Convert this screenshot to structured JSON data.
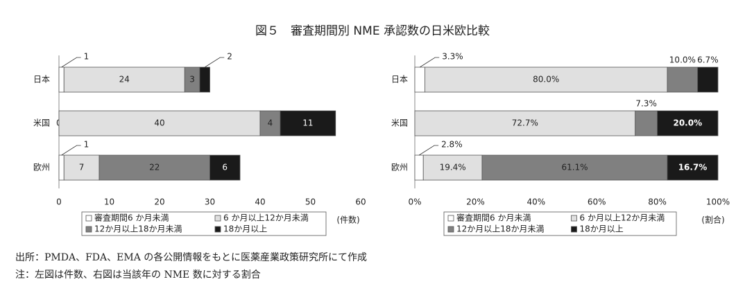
{
  "title": "図５　審査期間別 NME 承認数の日米欧比較",
  "notes": [
    "出所：PMDA、FDA、EMA の各公開情報をもとに医薬産業政策研究所にて作成",
    "注：左図は件数、右図は当該年の NME 数に対する割合"
  ],
  "chart_data": [
    {
      "type": "stacked-barh",
      "categories": [
        "日本",
        "米国",
        "欧州"
      ],
      "series": [
        {
          "name": "審査期間6 か月未満",
          "color": "#ffffff",
          "values": [
            1,
            0,
            1
          ]
        },
        {
          "name": "6 か月以上12か月未満",
          "color": "#e0e0e0",
          "values": [
            24,
            40,
            7
          ]
        },
        {
          "name": "12か月以上18か月未満",
          "color": "#808080",
          "values": [
            3,
            4,
            22
          ]
        },
        {
          "name": "18か月以上",
          "color": "#1a1a1a",
          "values": [
            2,
            11,
            6
          ]
        }
      ],
      "xlim": [
        0,
        60
      ],
      "xticks": [
        0,
        10,
        20,
        30,
        40,
        50,
        60
      ],
      "x_unit_label": "(件数)"
    },
    {
      "type": "stacked-barh",
      "categories": [
        "日本",
        "米国",
        "欧州"
      ],
      "series": [
        {
          "name": "審査期間6 か月未満",
          "color": "#ffffff",
          "values": [
            3.3,
            0,
            2.8
          ],
          "value_labels": [
            "3.3%",
            null,
            "2.8%"
          ]
        },
        {
          "name": "6 か月以上12か月未満",
          "color": "#e0e0e0",
          "values": [
            80.0,
            72.7,
            19.4
          ],
          "value_labels": [
            "80.0%",
            "72.7%",
            "19.4%"
          ]
        },
        {
          "name": "12か月以上18か月未満",
          "color": "#808080",
          "values": [
            10.0,
            7.3,
            61.1
          ],
          "value_labels": [
            "10.0%",
            "7.3%",
            "61.1%"
          ]
        },
        {
          "name": "18か月以上",
          "color": "#1a1a1a",
          "values": [
            6.7,
            20.0,
            16.7
          ],
          "value_labels": [
            "6.7%",
            "20.0%",
            "16.7%"
          ]
        }
      ],
      "xlim": [
        0,
        100
      ],
      "xticks": [
        {
          "value": 0,
          "label": "0%"
        },
        {
          "value": 20,
          "label": "20%"
        },
        {
          "value": 40,
          "label": "40%"
        },
        {
          "value": 60,
          "label": "60%"
        },
        {
          "value": 80,
          "label": "80%"
        },
        {
          "value": 100,
          "label": "100%"
        }
      ],
      "x_unit_label": "(割合)"
    }
  ]
}
